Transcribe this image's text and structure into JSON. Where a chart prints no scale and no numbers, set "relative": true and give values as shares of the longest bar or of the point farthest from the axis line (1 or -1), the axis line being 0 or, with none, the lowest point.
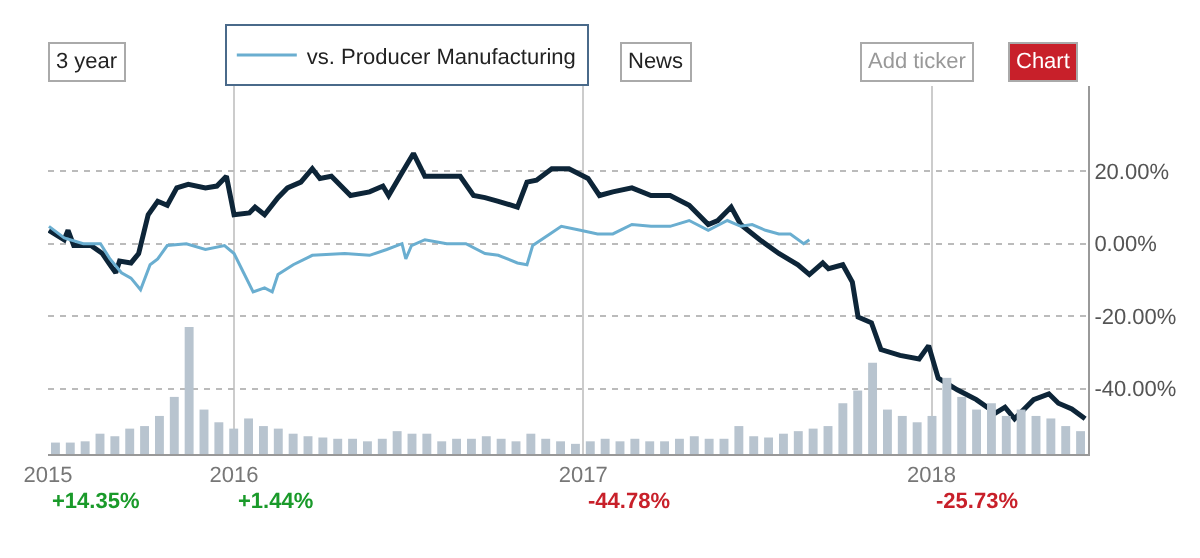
{
  "chart_data": [
    {
      "type": "line",
      "legend": "top left",
      "grid": true,
      "ylim": [
        -58,
        43.5
      ],
      "xlim": [
        "2015-06-20",
        "2018-06-14"
      ],
      "yticks": [
        {
          "value": 20,
          "label": "20.00%"
        },
        {
          "value": 0,
          "label": "0.00%"
        },
        {
          "value": -20,
          "label": "-20.00%"
        },
        {
          "value": -40,
          "label": "-40.00%"
        }
      ],
      "xticks": [
        {
          "value": "2015-06-20",
          "label": "2015"
        },
        {
          "value": "2016-01-01",
          "label": "2016"
        },
        {
          "value": "2017-01-01",
          "label": "2017"
        },
        {
          "value": "2018-01-01",
          "label": "2018"
        }
      ],
      "annotations": [
        "3 year",
        "News",
        "Add ticker",
        "Chart",
        "+14.35%",
        "+1.44%",
        "-44.78%",
        "-25.73%"
      ],
      "series": [
        {
          "type": "line",
          "color": "#0d2538",
          "x": [
            "2015-06-21",
            "2015-07-07",
            "2015-07-11",
            "2015-07-17",
            "2015-08-04",
            "2015-08-16",
            "2015-08-24",
            "2015-08-30",
            "2015-09-03",
            "2015-09-15",
            "2015-09-23",
            "2015-10-03",
            "2015-10-13",
            "2015-10-23",
            "2015-11-02",
            "2015-11-14",
            "2015-12-02",
            "2015-12-14",
            "2015-12-24",
            "2016-01-01",
            "2016-01-17",
            "2016-01-23",
            "2016-02-02",
            "2016-02-16",
            "2016-02-26",
            "2016-03-11",
            "2016-03-23",
            "2016-03-31",
            "2016-04-12",
            "2016-05-02",
            "2016-05-22",
            "2016-06-05",
            "2016-06-11",
            "2016-06-25",
            "2016-07-07",
            "2016-07-19",
            "2016-08-25",
            "2016-09-08",
            "2016-09-20",
            "2016-10-04",
            "2016-10-24",
            "2016-11-03",
            "2016-11-13",
            "2016-11-29",
            "2016-12-17",
            "2017-01-06",
            "2017-01-18",
            "2017-02-01",
            "2017-02-21",
            "2017-03-13",
            "2017-04-02",
            "2017-04-22",
            "2017-05-12",
            "2017-05-22",
            "2017-06-05",
            "2017-06-15",
            "2017-07-05",
            "2017-07-25",
            "2017-08-14",
            "2017-08-26",
            "2017-09-09",
            "2017-09-15",
            "2017-09-30",
            "2017-10-10",
            "2017-10-16",
            "2017-10-30",
            "2017-11-09",
            "2017-11-29",
            "2017-12-19",
            "2017-12-29",
            "2018-01-08",
            "2018-01-28",
            "2018-02-17",
            "2018-03-09",
            "2018-03-19",
            "2018-03-29",
            "2018-04-18",
            "2018-05-04",
            "2018-05-14",
            "2018-05-28",
            "2018-06-11"
          ],
          "values": [
            3.7,
            1.1,
            3.7,
            -0.5,
            -0.5,
            -2.7,
            -5.8,
            -8.0,
            -4.8,
            -5.3,
            -2.7,
            8.0,
            11.7,
            10.6,
            15.4,
            16.4,
            15.4,
            15.9,
            18.6,
            8.0,
            8.5,
            10.1,
            8.0,
            12.7,
            15.4,
            17.0,
            20.7,
            18.0,
            18.6,
            13.3,
            14.3,
            15.9,
            13.3,
            19.6,
            24.9,
            18.6,
            18.6,
            13.3,
            12.7,
            11.7,
            10.1,
            17.0,
            17.5,
            20.7,
            20.7,
            18.0,
            13.3,
            14.3,
            15.4,
            13.3,
            13.3,
            10.6,
            5.3,
            6.4,
            10.1,
            5.3,
            1.1,
            -2.7,
            -5.8,
            -8.5,
            -5.3,
            -6.9,
            -5.8,
            -10.6,
            -20.2,
            -21.8,
            -29.2,
            -30.8,
            -31.8,
            -28.1,
            -37.1,
            -40.3,
            -43.0,
            -46.7,
            -45.1,
            -48.3,
            -43.0,
            -41.4,
            -44.0,
            -45.6,
            -48.3
          ]
        },
        {
          "type": "line",
          "name": "vs. Producer Manufacturing",
          "color": "#6aaed0",
          "x": [
            "2015-06-21",
            "2015-07-07",
            "2015-07-27",
            "2015-08-14",
            "2015-08-24",
            "2015-09-05",
            "2015-09-15",
            "2015-09-25",
            "2015-10-05",
            "2015-10-13",
            "2015-10-23",
            "2015-11-12",
            "2015-12-02",
            "2015-12-22",
            "2016-01-01",
            "2016-01-11",
            "2016-01-21",
            "2016-02-02",
            "2016-02-10",
            "2016-02-16",
            "2016-03-03",
            "2016-03-23",
            "2016-04-26",
            "2016-05-22",
            "2016-06-09",
            "2016-06-25",
            "2016-06-29",
            "2016-07-05",
            "2016-07-19",
            "2016-08-11",
            "2016-08-31",
            "2016-09-20",
            "2016-10-04",
            "2016-10-24",
            "2016-11-03",
            "2016-11-09",
            "2016-11-27",
            "2016-12-09",
            "2016-12-29",
            "2017-01-16",
            "2017-02-01",
            "2017-02-21",
            "2017-03-13",
            "2017-04-02",
            "2017-04-22",
            "2017-05-12",
            "2017-06-01",
            "2017-06-15",
            "2017-06-27",
            "2017-07-11",
            "2017-07-25",
            "2017-08-06",
            "2017-08-20",
            "2017-08-26"
          ],
          "values": [
            4.8,
            1.6,
            0.0,
            0.0,
            -4.2,
            -8.0,
            -9.5,
            -12.7,
            -5.8,
            -4.2,
            -0.5,
            0.0,
            -1.6,
            -0.5,
            -2.7,
            -8.0,
            -13.3,
            -12.2,
            -13.3,
            -8.5,
            -5.8,
            -3.2,
            -2.7,
            -3.2,
            -1.6,
            0.0,
            -4.2,
            -0.5,
            1.1,
            0.0,
            0.0,
            -2.7,
            -3.2,
            -5.3,
            -5.8,
            -0.5,
            2.7,
            4.8,
            3.7,
            2.7,
            2.7,
            5.3,
            4.8,
            4.8,
            6.4,
            3.7,
            6.4,
            4.8,
            5.3,
            3.7,
            2.7,
            2.7,
            0.0,
            1.1
          ]
        }
      ]
    },
    {
      "type": "bar",
      "relative": true,
      "color": "#b8c4cf",
      "categories": [
        null,
        null,
        null,
        null,
        null,
        null,
        null,
        null,
        null,
        null,
        null,
        null,
        null,
        null,
        null,
        null,
        null,
        null,
        null,
        null,
        null,
        null,
        null,
        null,
        null,
        null,
        null,
        null,
        null,
        null,
        null,
        null,
        null,
        null,
        null,
        null,
        null,
        null,
        null,
        null,
        null,
        null,
        null,
        null,
        null,
        null,
        null,
        null,
        null,
        null,
        null,
        null,
        null,
        null,
        null,
        null,
        null,
        null,
        null,
        null,
        null,
        null,
        null,
        null,
        null,
        null,
        null,
        null,
        null,
        null
      ],
      "values": [
        0.09,
        0.09,
        0.1,
        0.16,
        0.14,
        0.2,
        0.22,
        0.3,
        0.45,
        1.0,
        0.35,
        0.25,
        0.2,
        0.28,
        0.22,
        0.2,
        0.16,
        0.14,
        0.13,
        0.12,
        0.12,
        0.1,
        0.12,
        0.18,
        0.16,
        0.16,
        0.1,
        0.12,
        0.12,
        0.14,
        0.12,
        0.1,
        0.16,
        0.12,
        0.1,
        0.08,
        0.1,
        0.12,
        0.1,
        0.12,
        0.1,
        0.1,
        0.12,
        0.14,
        0.12,
        0.12,
        0.22,
        0.14,
        0.13,
        0.16,
        0.18,
        0.2,
        0.22,
        0.4,
        0.5,
        0.72,
        0.35,
        0.3,
        0.25,
        0.3,
        0.6,
        0.45,
        0.35,
        0.4,
        0.3,
        0.35,
        0.3,
        0.28,
        0.22,
        0.18
      ]
    }
  ]
}
